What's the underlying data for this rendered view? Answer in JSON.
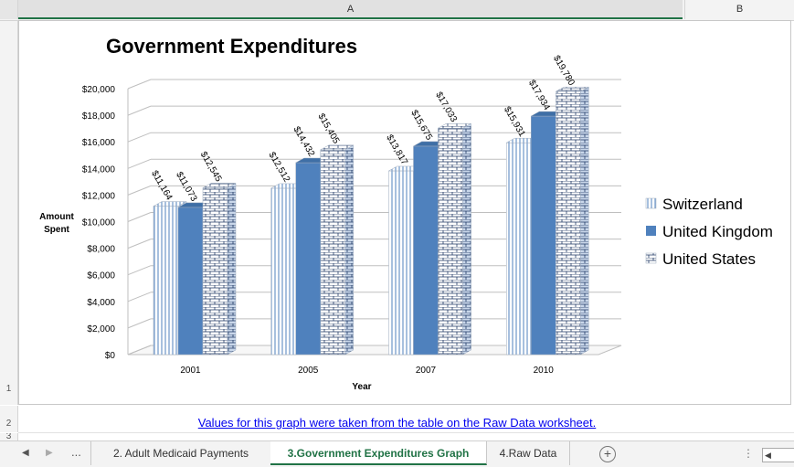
{
  "sheet": {
    "column_headers": [
      "A",
      "B"
    ],
    "row_headers": [
      "1",
      "2",
      "3"
    ],
    "link_text": "Values for this graph were taken from the table on the Raw Data worksheet."
  },
  "tabs": {
    "ellipsis": "...",
    "items": [
      {
        "label": "2. Adult Medicaid Payments",
        "active": false
      },
      {
        "label": "3.Government Expenditures Graph",
        "active": true
      },
      {
        "label": "4.Raw Data",
        "active": false
      }
    ],
    "add_label": "+"
  },
  "chart_data": {
    "type": "bar",
    "title": "Government Expenditures",
    "xlabel": "Year",
    "ylabel": "Amount Spent",
    "categories": [
      "2001",
      "2005",
      "2007",
      "2010"
    ],
    "ylim": [
      0,
      20000
    ],
    "yticks": [
      "$0",
      "$2,000",
      "$4,000",
      "$6,000",
      "$8,000",
      "$10,000",
      "$12,000",
      "$14,000",
      "$16,000",
      "$18,000",
      "$20,000"
    ],
    "grid": true,
    "legend_position": "right",
    "series": [
      {
        "name": "Switzerland",
        "values": [
          11164,
          12512,
          13817,
          15931
        ],
        "labels": [
          "$11,164",
          "$12,512",
          "$13,817",
          "$15,931"
        ],
        "pattern": "vertical-lines",
        "color": "#4f81bd"
      },
      {
        "name": "United Kingdom",
        "values": [
          11073,
          14432,
          15675,
          17934
        ],
        "labels": [
          "$11,073",
          "$14,432",
          "$15,675",
          "$17,934"
        ],
        "pattern": "solid",
        "color": "#4f81bd"
      },
      {
        "name": "United States",
        "values": [
          12545,
          15405,
          17033,
          19780
        ],
        "labels": [
          "$12,545",
          "$15,405",
          "$17,033",
          "$19,780"
        ],
        "pattern": "brick",
        "color": "#4f81bd"
      }
    ]
  }
}
